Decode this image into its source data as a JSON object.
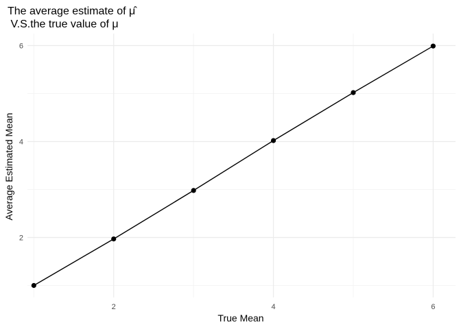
{
  "chart_data": {
    "type": "line",
    "title_line1": "The average estimate of μ̂",
    "title_line2": " V.S.the true value of μ",
    "xlabel": "True Mean",
    "ylabel": "Average Estimated Mean",
    "x": [
      1,
      2,
      3,
      4,
      5,
      6
    ],
    "y": [
      1.0,
      1.97,
      2.98,
      4.02,
      5.02,
      5.99
    ],
    "xlim": [
      0.92,
      6.28
    ],
    "ylim": [
      0.75,
      6.25
    ],
    "x_ticks": [
      2,
      4,
      6
    ],
    "y_ticks": [
      2,
      4,
      6
    ],
    "x_minor": [
      1,
      3,
      5
    ],
    "y_minor": [
      1,
      3,
      5
    ],
    "grid": true,
    "legend": "none",
    "line_color": "#000000",
    "point_color": "#000000",
    "grid_major_color": "#ebebeb",
    "grid_minor_color": "#f4f4f4"
  }
}
